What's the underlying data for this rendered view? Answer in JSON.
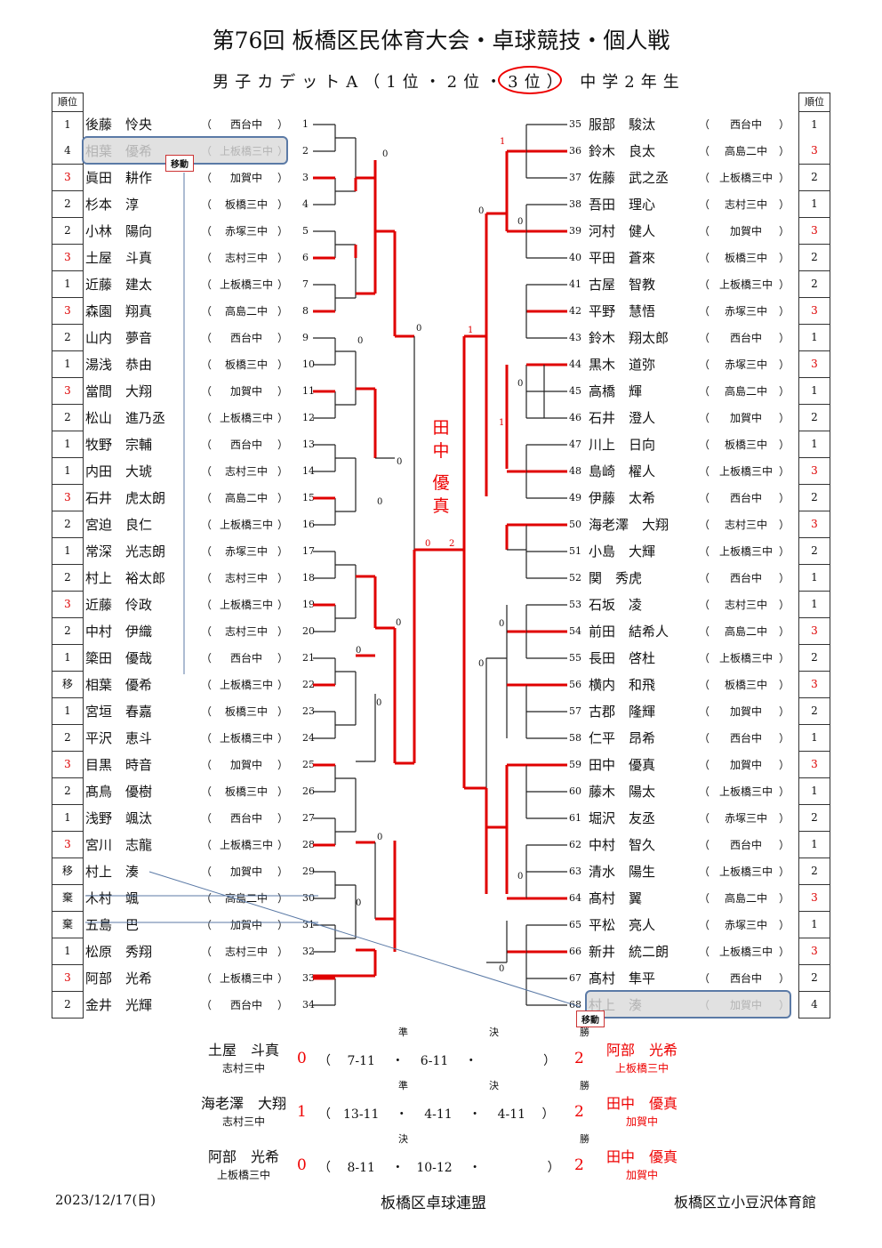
{
  "title": "第76回 板橋区民体育大会・卓球競技・個人戦",
  "subtitle": "男子カデットA（1位・2位・3位） 中学2年生",
  "rank_header": "順位",
  "move_label": "移動",
  "champion_name": [
    "田",
    "中",
    "優",
    "真"
  ],
  "left_players": [
    {
      "rank": "1",
      "name": "後藤　怜央",
      "school": "西台中",
      "num": "1"
    },
    {
      "rank": "4",
      "name": "相葉　優希",
      "school": "上板橋三中",
      "num": "2"
    },
    {
      "rank": "3",
      "name": "眞田　耕作",
      "school": "加賀中",
      "num": "3"
    },
    {
      "rank": "2",
      "name": "杉本　淳",
      "school": "板橋三中",
      "num": "4"
    },
    {
      "rank": "2",
      "name": "小林　陽向",
      "school": "赤塚三中",
      "num": "5"
    },
    {
      "rank": "3",
      "name": "土屋　斗真",
      "school": "志村三中",
      "num": "6"
    },
    {
      "rank": "1",
      "name": "近藤　建太",
      "school": "上板橋三中",
      "num": "7"
    },
    {
      "rank": "3",
      "name": "森園　翔真",
      "school": "高島二中",
      "num": "8"
    },
    {
      "rank": "2",
      "name": "山内　夢音",
      "school": "西台中",
      "num": "9"
    },
    {
      "rank": "1",
      "name": "湯浅　恭由",
      "school": "板橋三中",
      "num": "10"
    },
    {
      "rank": "3",
      "name": "當間　大翔",
      "school": "加賀中",
      "num": "11"
    },
    {
      "rank": "2",
      "name": "松山　進乃丞",
      "school": "上板橋三中",
      "num": "12"
    },
    {
      "rank": "1",
      "name": "牧野　宗輔",
      "school": "西台中",
      "num": "13"
    },
    {
      "rank": "1",
      "name": "内田　大琥",
      "school": "志村三中",
      "num": "14"
    },
    {
      "rank": "3",
      "name": "石井　虎太朗",
      "school": "高島二中",
      "num": "15"
    },
    {
      "rank": "2",
      "name": "宮迫　良仁",
      "school": "上板橋三中",
      "num": "16"
    },
    {
      "rank": "1",
      "name": "常深　光志朗",
      "school": "赤塚三中",
      "num": "17"
    },
    {
      "rank": "2",
      "name": "村上　裕太郎",
      "school": "志村三中",
      "num": "18"
    },
    {
      "rank": "3",
      "name": "近藤　伶政",
      "school": "上板橋三中",
      "num": "19"
    },
    {
      "rank": "2",
      "name": "中村　伊織",
      "school": "志村三中",
      "num": "20"
    },
    {
      "rank": "1",
      "name": "簗田　優哉",
      "school": "西台中",
      "num": "21"
    },
    {
      "rank": "移",
      "name": "相葉　優希",
      "school": "上板橋三中",
      "num": "22"
    },
    {
      "rank": "1",
      "name": "宮垣　春嘉",
      "school": "板橋三中",
      "num": "23"
    },
    {
      "rank": "2",
      "name": "平沢　恵斗",
      "school": "上板橋三中",
      "num": "24"
    },
    {
      "rank": "3",
      "name": "目黒　時音",
      "school": "加賀中",
      "num": "25"
    },
    {
      "rank": "2",
      "name": "髙鳥　優樹",
      "school": "板橋三中",
      "num": "26"
    },
    {
      "rank": "1",
      "name": "浅野　颯汰",
      "school": "西台中",
      "num": "27"
    },
    {
      "rank": "3",
      "name": "宮川　志龍",
      "school": "上板橋三中",
      "num": "28"
    },
    {
      "rank": "移",
      "name": "村上　湊",
      "school": "加賀中",
      "num": "29"
    },
    {
      "rank": "棄",
      "name": "木村　颯",
      "school": "高島二中",
      "num": "30"
    },
    {
      "rank": "棄",
      "name": "五島　巴",
      "school": "加賀中",
      "num": "31"
    },
    {
      "rank": "1",
      "name": "松原　秀翔",
      "school": "志村三中",
      "num": "32"
    },
    {
      "rank": "3",
      "name": "阿部　光希",
      "school": "上板橋三中",
      "num": "33"
    },
    {
      "rank": "2",
      "name": "金井　光輝",
      "school": "西台中",
      "num": "34"
    }
  ],
  "right_players": [
    {
      "rank": "1",
      "name": "服部　駿汰",
      "school": "西台中",
      "num": "35"
    },
    {
      "rank": "3",
      "name": "鈴木　良太",
      "school": "高島二中",
      "num": "36"
    },
    {
      "rank": "2",
      "name": "佐藤　武之丞",
      "school": "上板橋三中",
      "num": "37"
    },
    {
      "rank": "1",
      "name": "吾田　理心",
      "school": "志村三中",
      "num": "38"
    },
    {
      "rank": "3",
      "name": "河村　健人",
      "school": "加賀中",
      "num": "39"
    },
    {
      "rank": "2",
      "name": "平田　蒼來",
      "school": "板橋三中",
      "num": "40"
    },
    {
      "rank": "2",
      "name": "古屋　智教",
      "school": "上板橋三中",
      "num": "41"
    },
    {
      "rank": "3",
      "name": "平野　慧悟",
      "school": "赤塚三中",
      "num": "42"
    },
    {
      "rank": "1",
      "name": "鈴木　翔太郎",
      "school": "西台中",
      "num": "43"
    },
    {
      "rank": "3",
      "name": "黒木　道弥",
      "school": "赤塚三中",
      "num": "44"
    },
    {
      "rank": "1",
      "name": "高橋　輝",
      "school": "高島二中",
      "num": "45"
    },
    {
      "rank": "2",
      "name": "石井　澄人",
      "school": "加賀中",
      "num": "46"
    },
    {
      "rank": "1",
      "name": "川上　日向",
      "school": "板橋三中",
      "num": "47"
    },
    {
      "rank": "3",
      "name": "島崎　櫂人",
      "school": "上板橋三中",
      "num": "48"
    },
    {
      "rank": "2",
      "name": "伊藤　太希",
      "school": "西台中",
      "num": "49"
    },
    {
      "rank": "3",
      "name": "海老澤　大翔",
      "school": "志村三中",
      "num": "50"
    },
    {
      "rank": "2",
      "name": "小島　大輝",
      "school": "上板橋三中",
      "num": "51"
    },
    {
      "rank": "1",
      "name": "関　秀虎",
      "school": "西台中",
      "num": "52"
    },
    {
      "rank": "1",
      "name": "石坂　凌",
      "school": "志村三中",
      "num": "53"
    },
    {
      "rank": "3",
      "name": "前田　結希人",
      "school": "高島二中",
      "num": "54"
    },
    {
      "rank": "2",
      "name": "長田　啓杜",
      "school": "上板橋三中",
      "num": "55"
    },
    {
      "rank": "3",
      "name": "横内　和飛",
      "school": "板橋三中",
      "num": "56"
    },
    {
      "rank": "2",
      "name": "古郡　隆輝",
      "school": "加賀中",
      "num": "57"
    },
    {
      "rank": "1",
      "name": "仁平　昂希",
      "school": "西台中",
      "num": "58"
    },
    {
      "rank": "3",
      "name": "田中　優真",
      "school": "加賀中",
      "num": "59"
    },
    {
      "rank": "1",
      "name": "藤木　陽太",
      "school": "上板橋三中",
      "num": "60"
    },
    {
      "rank": "2",
      "name": "堀沢　友丞",
      "school": "赤塚三中",
      "num": "61"
    },
    {
      "rank": "1",
      "name": "中村　智久",
      "school": "西台中",
      "num": "62"
    },
    {
      "rank": "2",
      "name": "清水　陽生",
      "school": "上板橋三中",
      "num": "63"
    },
    {
      "rank": "3",
      "name": "髙村　翼",
      "school": "高島二中",
      "num": "64"
    },
    {
      "rank": "1",
      "name": "平松　亮人",
      "school": "赤塚三中",
      "num": "65"
    },
    {
      "rank": "3",
      "name": "新井　統二朗",
      "school": "上板橋三中",
      "num": "66"
    },
    {
      "rank": "2",
      "name": "髙村　隼平",
      "school": "西台中",
      "num": "67"
    },
    {
      "rank": "4",
      "name": "村上　湊",
      "school": "加賀中",
      "num": "68"
    }
  ],
  "finals": [
    {
      "label": "準　決　勝",
      "left_name": "土屋　斗真",
      "left_school": "志村三中",
      "left_score": "0",
      "sets": "（　 7-11 　・　 6-11 　・　　　　　 ）",
      "right_score": "2",
      "right_name": "阿部　光希",
      "right_school": "上板橋三中"
    },
    {
      "label": "準　決　勝",
      "left_name": "海老澤　大翔",
      "left_school": "志村三中",
      "left_score": "1",
      "sets": "（　13-11 　・　 4-11 　・　 4-11　 ）",
      "right_score": "2",
      "right_name": "田中　優真",
      "right_school": "加賀中"
    },
    {
      "label": "決　　　勝",
      "left_name": "阿部　光希",
      "left_school": "上板橋三中",
      "left_score": "0",
      "sets": "（　 8-11 　・　10-12 　・　　　　　 ）",
      "right_score": "2",
      "right_name": "田中　優真",
      "right_school": "加賀中"
    }
  ],
  "footer": {
    "date": "2023/12/17(日)",
    "org": "板橋区卓球連盟",
    "venue": "板橋区立小豆沢体育館"
  },
  "colors": {
    "win_line": "#e00000",
    "line": "#222222",
    "move": "#5b7aa6"
  }
}
